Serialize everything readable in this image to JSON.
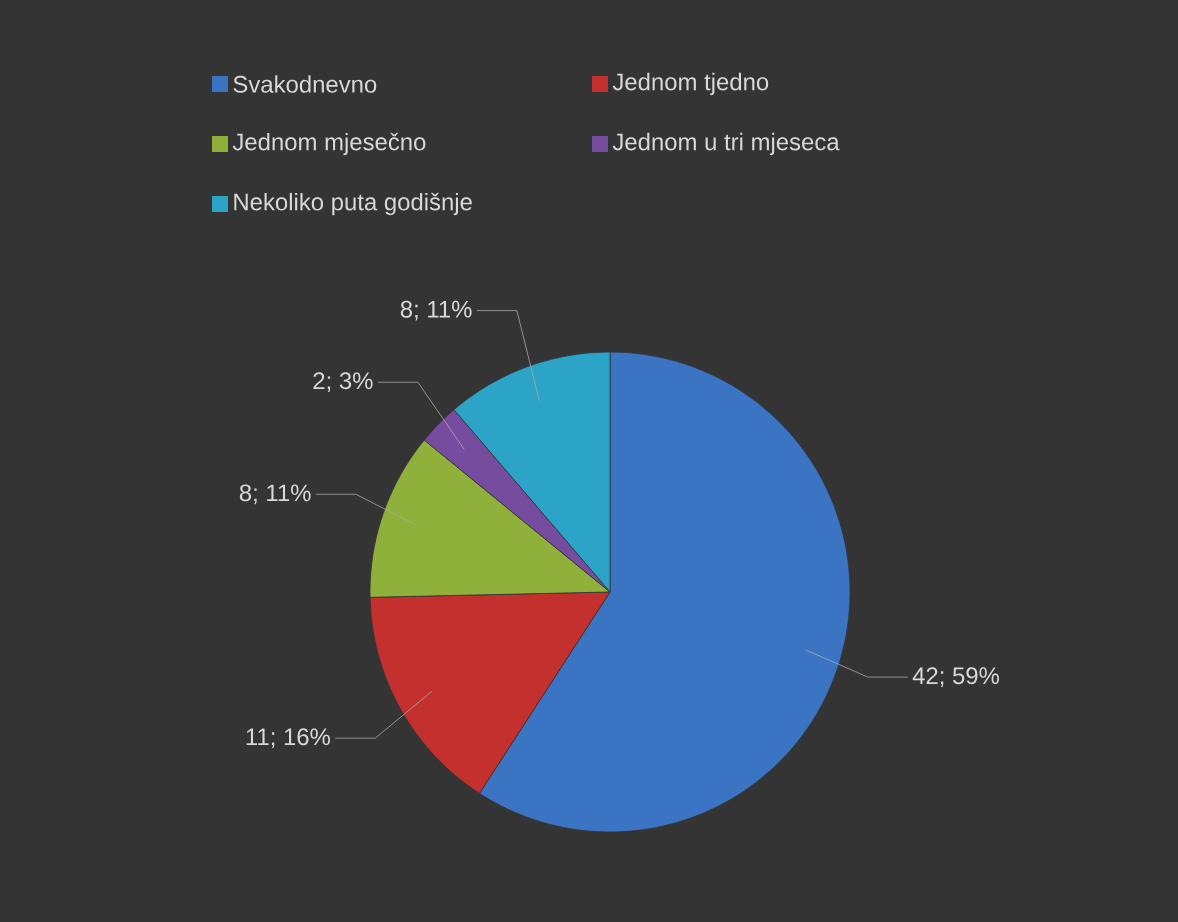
{
  "chart_data": {
    "type": "pie",
    "categories": [
      "Svakodnevno",
      "Jednom tjedno",
      "Jednom mjesečno",
      "Jednom u tri mjeseca",
      "Nekoliko puta godišnje"
    ],
    "values": [
      42,
      11,
      8,
      2,
      8
    ],
    "colors": [
      "#3b74c2",
      "#c3302e",
      "#8fb03a",
      "#764c9e",
      "#2ba4c8"
    ],
    "value_labels": [
      "42; 59%",
      "11; 16%",
      "8; 11%",
      "2; 3%",
      "8; 11%"
    ],
    "legend": "top"
  }
}
